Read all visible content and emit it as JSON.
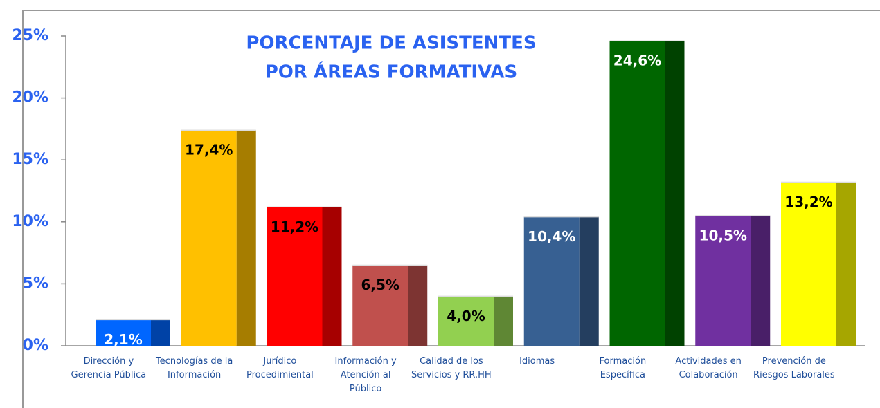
{
  "chart_data": {
    "type": "bar",
    "title": [
      "PORCENTAJE DE ASISTENTES",
      "POR ÁREAS FORMATIVAS"
    ],
    "categories": [
      "Dirección y Gerencia Pública",
      "Tecnologías de la Información",
      "Jurídico Procedimiental",
      "Información y Atención al Público",
      "Calidad de los Servicios y RR.HH",
      "Idiomas",
      "Formación Específica",
      "Actividades en Colaboración",
      "Prevención de Riesgos Laborales"
    ],
    "values": [
      2.1,
      17.4,
      11.2,
      6.5,
      4.0,
      10.4,
      24.6,
      10.5,
      13.2
    ],
    "value_labels": [
      "2,1%",
      "17,4%",
      "11,2%",
      "6,5%",
      "4,0%",
      "10,4%",
      "24,6%",
      "10,5%",
      "13,2%"
    ],
    "colors": [
      "#0066ff",
      "#ffc000",
      "#ff0000",
      "#c0504d",
      "#92d050",
      "#376092",
      "#006600",
      "#7030a0",
      "#ffff00"
    ],
    "label_colors": [
      "#ffffff",
      "#000000",
      "#000000",
      "#000000",
      "#000000",
      "#ffffff",
      "#ffffff",
      "#ffffff",
      "#000000"
    ],
    "ylim": [
      0,
      25
    ],
    "yticks": [
      {
        "value": 0,
        "label": "0%"
      },
      {
        "value": 5,
        "label": "5%"
      },
      {
        "value": 10,
        "label": "10%"
      },
      {
        "value": 15,
        "label": "15%"
      },
      {
        "value": 20,
        "label": "20%"
      },
      {
        "value": 25,
        "label": "25%"
      }
    ],
    "grid": false
  }
}
